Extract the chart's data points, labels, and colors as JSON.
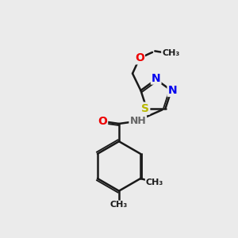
{
  "background_color": "#ebebeb",
  "bond_color": "#1a1a1a",
  "bond_width": 1.8,
  "atom_colors": {
    "S": "#b8b800",
    "N": "#0000ee",
    "O": "#ee0000",
    "NH": "#666666",
    "C": "#1a1a1a"
  },
  "font_size": 9,
  "fig_width": 3.0,
  "fig_height": 3.0,
  "xlim": [
    0,
    10
  ],
  "ylim": [
    0,
    10
  ]
}
